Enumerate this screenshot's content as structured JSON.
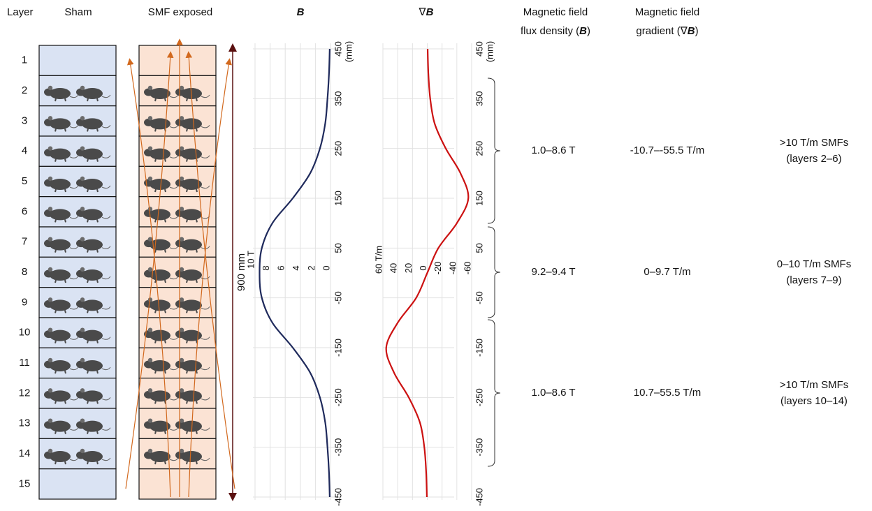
{
  "header": {
    "layer": "Layer",
    "sham": "Sham",
    "smf": "SMF exposed",
    "flux_density": [
      "Magnetic field",
      "flux density (",
      "B",
      ")"
    ],
    "gradient": [
      "Magnetic field",
      "gradient (",
      "∇",
      "B",
      ")"
    ]
  },
  "layers": [
    1,
    2,
    3,
    4,
    5,
    6,
    7,
    8,
    9,
    10,
    11,
    12,
    13,
    14,
    15
  ],
  "length_label": "900 mm",
  "rows": [
    {
      "flux": "1.0–8.6 T",
      "gradient": "-10.7–-55.5 T/m",
      "note": [
        ">10 T/m SMFs",
        "(layers 2–6)"
      ]
    },
    {
      "flux": "9.2–9.4 T",
      "gradient": "0–9.7 T/m",
      "note": [
        "0–10 T/m SMFs",
        "(layers 7–9)"
      ]
    },
    {
      "flux": "1.0–8.6 T",
      "gradient": "10.7–55.5 T/m",
      "note": [
        ">10 T/m SMFs",
        "(layers 10–14)"
      ]
    }
  ],
  "chart_data": [
    {
      "type": "line",
      "title": "B",
      "x_unit": "(mm)",
      "x": [
        450,
        400,
        350,
        300,
        250,
        200,
        150,
        100,
        50,
        0,
        -50,
        -100,
        -150,
        -200,
        -250,
        -300,
        -350,
        -400,
        -450
      ],
      "values": [
        0.1,
        0.2,
        0.4,
        0.7,
        1.4,
        2.7,
        5.0,
        7.7,
        9.1,
        9.4,
        9.1,
        7.7,
        5.0,
        2.7,
        1.4,
        0.7,
        0.4,
        0.2,
        0.1
      ],
      "color": "#1f2a5c",
      "xlim": [
        450,
        -450
      ],
      "xticks": [
        450,
        350,
        250,
        150,
        50,
        -50,
        -150,
        -250,
        -350,
        -450
      ],
      "ylim": [
        10,
        0
      ],
      "yticks": [
        {
          "value": 10,
          "label": "10 T"
        },
        8,
        6,
        4,
        2,
        0
      ],
      "grid": true
    },
    {
      "type": "line",
      "title": [
        "∇",
        "B"
      ],
      "x_unit": "(mm)",
      "x": [
        450,
        400,
        350,
        300,
        250,
        200,
        150,
        100,
        50,
        0,
        -50,
        -100,
        -150,
        -200,
        -250,
        -300,
        -350,
        -400,
        -450
      ],
      "values": [
        -0.5,
        -1.5,
        -4,
        -10,
        -25,
        -45,
        -55.5,
        -40,
        -15,
        0,
        15,
        40,
        55.5,
        45,
        25,
        10,
        4,
        1.5,
        0.5
      ],
      "color": "#cc1111",
      "xlim": [
        450,
        -450
      ],
      "xticks": [
        450,
        350,
        250,
        150,
        50,
        -50,
        -150,
        -250,
        -350,
        -450
      ],
      "ylim": [
        60,
        -60
      ],
      "yticks": [
        {
          "value": 60,
          "label": "60 T/m"
        },
        40,
        20,
        0,
        -20,
        -40,
        -60
      ],
      "grid": true
    }
  ]
}
